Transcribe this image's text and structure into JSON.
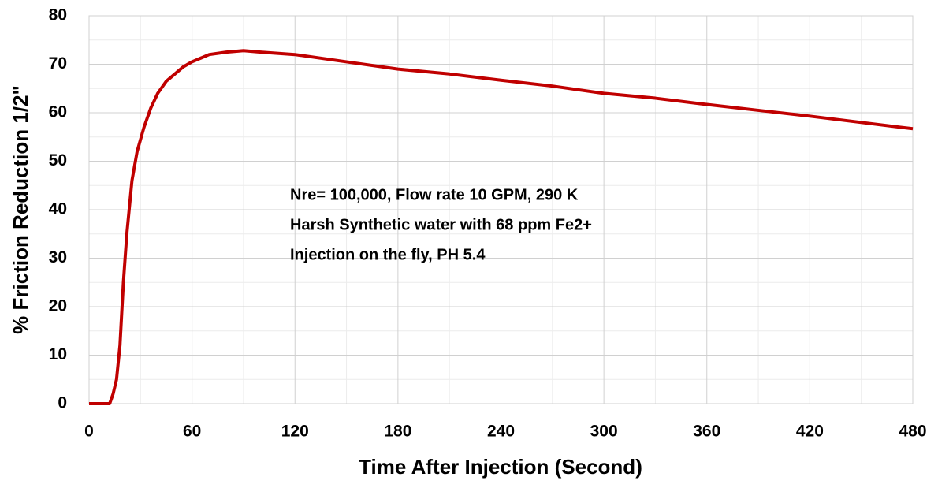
{
  "chart_data": {
    "type": "line",
    "x_label": "Time After Injection (Second)",
    "y_label": "% Friction Reduction 1/2\"",
    "annotations": [
      "Nre= 100,000, Flow rate 10 GPM, 290 K",
      "Harsh Synthetic water with 68 ppm Fe2+",
      "Injection on the fly, PH 5.4"
    ],
    "x": [
      0,
      12,
      14,
      16,
      18,
      20,
      22,
      25,
      28,
      32,
      36,
      40,
      45,
      50,
      55,
      60,
      70,
      80,
      90,
      100,
      120,
      150,
      180,
      210,
      240,
      270,
      300,
      330,
      360,
      390,
      420,
      450,
      480
    ],
    "series": [
      {
        "color": "#c00000",
        "values": [
          0,
          0,
          2,
          5,
          12,
          25,
          35,
          46,
          52,
          57,
          61,
          64,
          66.5,
          68,
          69.5,
          70.5,
          72,
          72.5,
          72.8,
          72.5,
          72,
          70.5,
          69,
          68,
          66.7,
          65.5,
          64,
          63,
          61.7,
          60.5,
          59.3,
          58,
          56.7
        ]
      }
    ],
    "xlim": [
      0,
      480
    ],
    "xticks": [
      0,
      60,
      120,
      180,
      240,
      300,
      360,
      420,
      480
    ],
    "x_minor_ticks": [
      30,
      90,
      150,
      210,
      270,
      330,
      390,
      450
    ],
    "ylim": [
      0,
      80
    ],
    "yticks": [
      0,
      10,
      20,
      30,
      40,
      50,
      60,
      70,
      80
    ],
    "y_minor_ticks": [
      5,
      15,
      25,
      35,
      45,
      55,
      65,
      75
    ],
    "grid": true
  }
}
